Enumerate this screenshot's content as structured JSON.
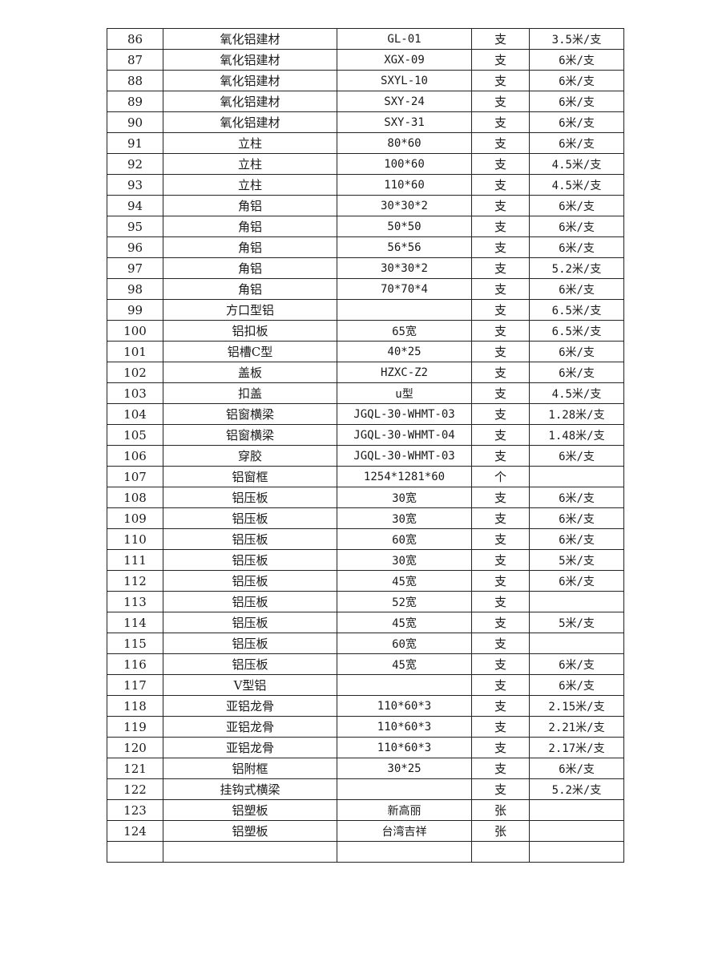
{
  "table": {
    "rows": [
      [
        "86",
        "氧化铝建材",
        "GL-01",
        "支",
        "3.5米/支"
      ],
      [
        "87",
        "氧化铝建材",
        "XGX-09",
        "支",
        "6米/支"
      ],
      [
        "88",
        "氧化铝建材",
        "SXYL-10",
        "支",
        "6米/支"
      ],
      [
        "89",
        "氧化铝建材",
        "SXY-24",
        "支",
        "6米/支"
      ],
      [
        "90",
        "氧化铝建材",
        "SXY-31",
        "支",
        "6米/支"
      ],
      [
        "91",
        "立柱",
        "80*60",
        "支",
        "6米/支"
      ],
      [
        "92",
        "立柱",
        "100*60",
        "支",
        "4.5米/支"
      ],
      [
        "93",
        "立柱",
        "110*60",
        "支",
        "4.5米/支"
      ],
      [
        "94",
        "角铝",
        "30*30*2",
        "支",
        "6米/支"
      ],
      [
        "95",
        "角铝",
        "50*50",
        "支",
        "6米/支"
      ],
      [
        "96",
        "角铝",
        "56*56",
        "支",
        "6米/支"
      ],
      [
        "97",
        "角铝",
        "30*30*2",
        "支",
        "5.2米/支"
      ],
      [
        "98",
        "角铝",
        "70*70*4",
        "支",
        "6米/支"
      ],
      [
        "99",
        "方口型铝",
        "",
        "支",
        "6.5米/支"
      ],
      [
        "100",
        "铝扣板",
        "65宽",
        "支",
        "6.5米/支"
      ],
      [
        "101",
        "铝槽C型",
        "40*25",
        "支",
        "6米/支"
      ],
      [
        "102",
        "盖板",
        "HZXC-Z2",
        "支",
        "6米/支"
      ],
      [
        "103",
        "扣盖",
        "u型",
        "支",
        "4.5米/支"
      ],
      [
        "104",
        "铝窗横梁",
        "JGQL-30-WHMT-03",
        "支",
        "1.28米/支"
      ],
      [
        "105",
        "铝窗横梁",
        "JGQL-30-WHMT-04",
        "支",
        "1.48米/支"
      ],
      [
        "106",
        "穿胶",
        "JGQL-30-WHMT-03",
        "支",
        "6米/支"
      ],
      [
        "107",
        "铝窗框",
        "1254*1281*60",
        "个",
        ""
      ],
      [
        "108",
        "铝压板",
        "30宽",
        "支",
        "6米/支"
      ],
      [
        "109",
        "铝压板",
        "30宽",
        "支",
        "6米/支"
      ],
      [
        "110",
        "铝压板",
        "60宽",
        "支",
        "6米/支"
      ],
      [
        "111",
        "铝压板",
        "30宽",
        "支",
        "5米/支"
      ],
      [
        "112",
        "铝压板",
        "45宽",
        "支",
        "6米/支"
      ],
      [
        "113",
        "铝压板",
        "52宽",
        "支",
        ""
      ],
      [
        "114",
        "铝压板",
        "45宽",
        "支",
        "5米/支"
      ],
      [
        "115",
        "铝压板",
        "60宽",
        "支",
        ""
      ],
      [
        "116",
        "铝压板",
        "45宽",
        "支",
        "6米/支"
      ],
      [
        "117",
        "V型铝",
        "",
        "支",
        "6米/支"
      ],
      [
        "118",
        "亚铝龙骨",
        "110*60*3",
        "支",
        "2.15米/支"
      ],
      [
        "119",
        "亚铝龙骨",
        "110*60*3",
        "支",
        "2.21米/支"
      ],
      [
        "120",
        "亚铝龙骨",
        "110*60*3",
        "支",
        "2.17米/支"
      ],
      [
        "121",
        "铝附框",
        "30*25",
        "支",
        "6米/支"
      ],
      [
        "122",
        "挂钩式横梁",
        "",
        "支",
        "5.2米/支"
      ],
      [
        "123",
        "铝塑板",
        "新高丽",
        "张",
        ""
      ],
      [
        "124",
        "铝塑板",
        "台湾吉祥",
        "张",
        ""
      ],
      [
        "",
        "",
        "",
        "",
        ""
      ]
    ]
  }
}
